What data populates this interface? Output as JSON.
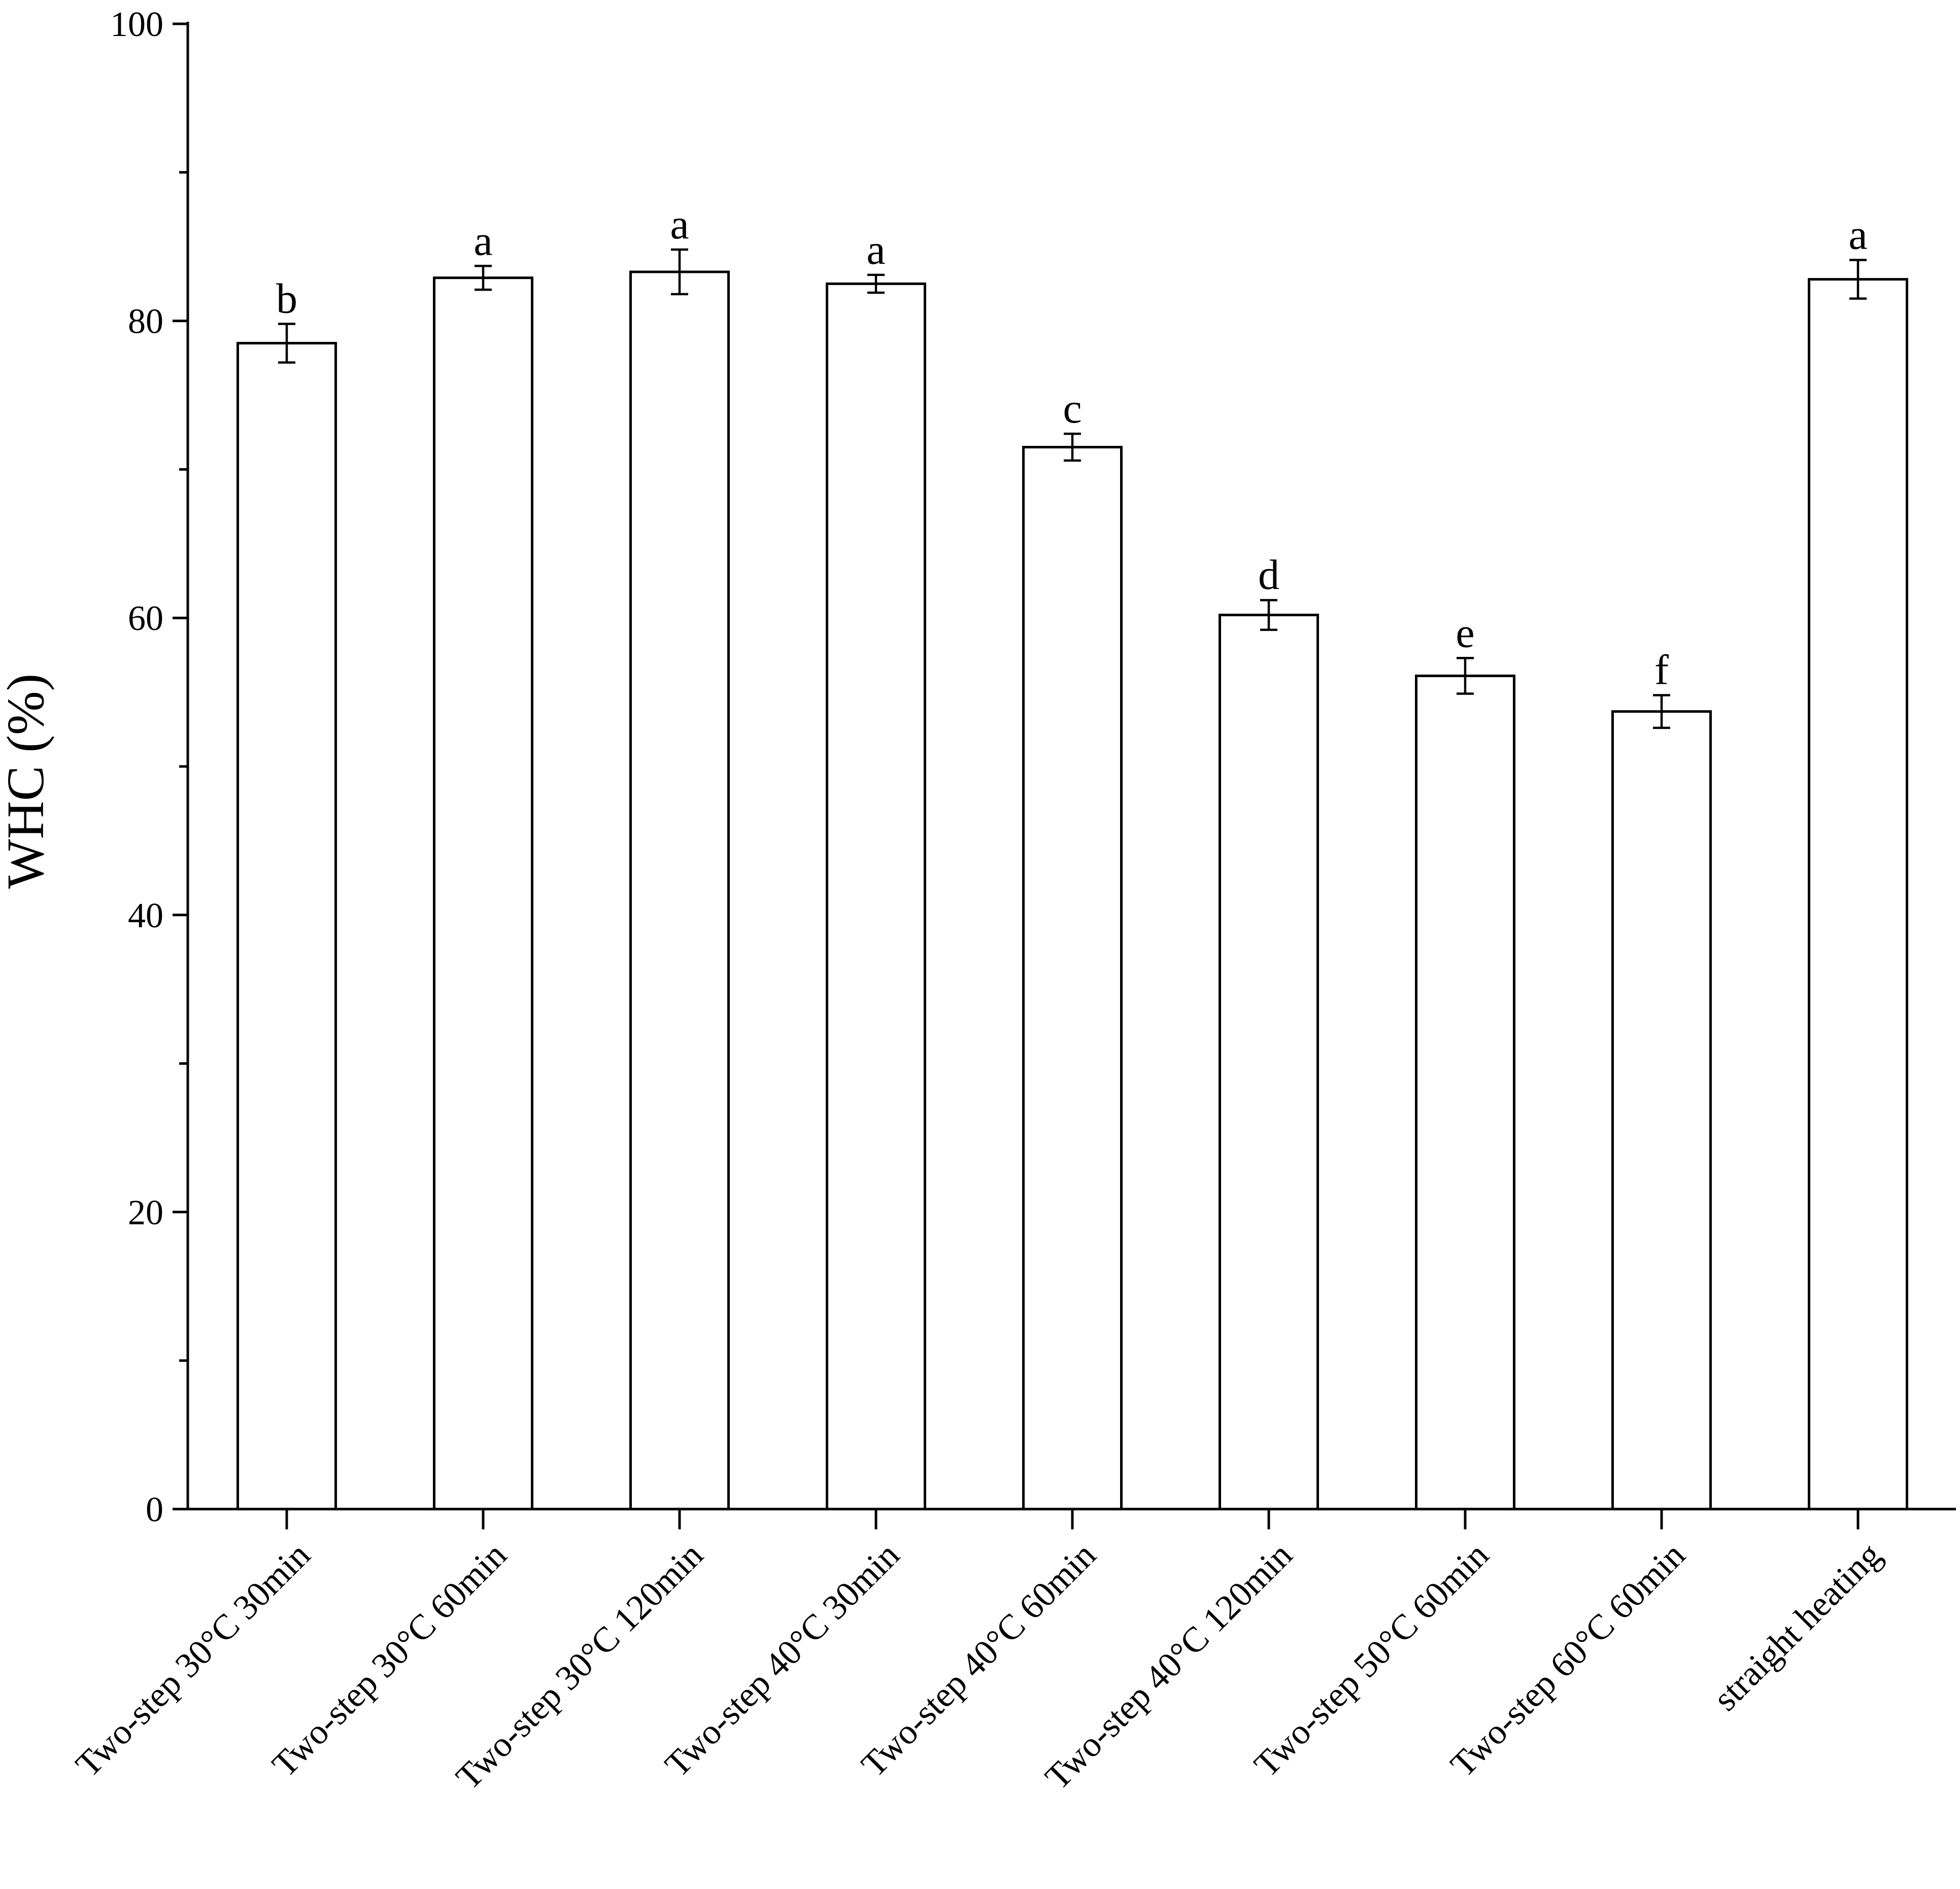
{
  "chart_data": {
    "type": "bar",
    "title": "",
    "xlabel": "",
    "ylabel": "WHC (%)",
    "ylim": [
      0,
      100
    ],
    "yticks": [
      0,
      20,
      40,
      60,
      80,
      100
    ],
    "grid": false,
    "categories": [
      "Two-step 30°C 30min",
      "Two-step 30°C 60min",
      "Two-step 30°C 120min",
      "Two-step 40°C 30min",
      "Two-step 40°C 60min",
      "Two-step 40°C 120min",
      "Two-step 50°C 60min",
      "Two-step 60°C 60min",
      "straight heating"
    ],
    "values": [
      78.5,
      82.9,
      83.3,
      82.5,
      71.5,
      60.2,
      56.1,
      53.7,
      82.8
    ],
    "errors": [
      1.3,
      0.8,
      1.5,
      0.6,
      0.9,
      1.0,
      1.2,
      1.1,
      1.3
    ],
    "significance_labels": [
      "b",
      "a",
      "a",
      "a",
      "c",
      "d",
      "e",
      "f",
      "a"
    ],
    "colors": {
      "bar_fill": "#ffffff",
      "bar_stroke": "#000000",
      "axis": "#000000"
    }
  }
}
